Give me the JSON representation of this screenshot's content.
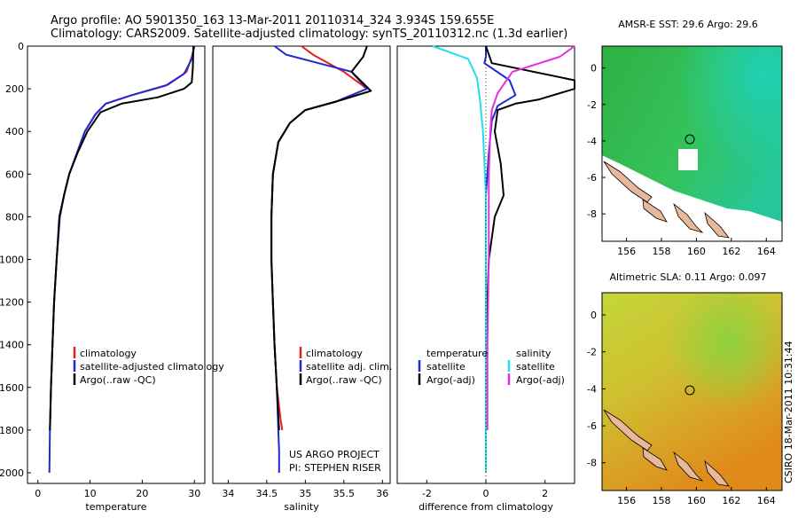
{
  "header": {
    "line1": "Argo profile: AO 5901350_163 13-Mar-2011 20110314_324 3.934S 159.655E",
    "line2": "Climatology: CARS2009. Satellite-adjusted climatology: synTS_20110312.nc (1.3d earlier)"
  },
  "colors": {
    "climatology": "#e8201c",
    "satellite": "#1d2bd6",
    "argo": "#000000",
    "satellite_salinity": "#22e0e8",
    "argo_salinity_adj": "#e030e0",
    "sst_green": "#33b84a",
    "sla_yellow": "#b4d23a",
    "land": "#e8b89a"
  },
  "depth_ticks": [
    "0",
    "200",
    "400",
    "600",
    "800",
    "1000",
    "1200",
    "1400",
    "1600",
    "1800",
    "2000"
  ],
  "panels": {
    "temperature": {
      "xlabel": "temperature",
      "xticks": [
        "0",
        "10",
        "20",
        "30"
      ],
      "legend": [
        "climatology",
        "satellite-adjusted climatology",
        "Argo(..raw -QC)"
      ]
    },
    "salinity": {
      "xlabel": "salinity",
      "xticks": [
        "34",
        "34.5",
        "35",
        "35.5",
        "36"
      ],
      "legend": [
        "climatology",
        "satellite adj. clim.",
        "Argo(..raw -QC)"
      ],
      "project_line1": "US ARGO PROJECT",
      "project_line2": "PI: STEPHEN RISER"
    },
    "difference": {
      "xlabel": "difference from climatology",
      "xticks": [
        "-2",
        "0",
        "2"
      ],
      "legend_temp_title": "temperature",
      "legend_sal_title": "salinity",
      "legend_temp": [
        "satellite",
        "Argo(-adj)"
      ],
      "legend_sal": [
        "satellite",
        "Argo(-adj)"
      ]
    }
  },
  "maps": {
    "sst": {
      "title": "AMSR-E SST: 29.6 Argo: 29.6"
    },
    "sla": {
      "title": "Altimetric SLA: 0.11 Argo: 0.097"
    },
    "xticks": [
      "156",
      "158",
      "160",
      "162",
      "164"
    ],
    "yticks": [
      "0",
      "-2",
      "-4",
      "-6",
      "-8"
    ],
    "argo_position": {
      "lon": 159.655,
      "lat": -3.934
    }
  },
  "side_label": "CSIRO 18-Mar-2011 10:31:44",
  "chart_data": [
    {
      "type": "line",
      "title": "",
      "xlabel": "temperature",
      "ylabel": "",
      "xlim": [
        -2,
        32
      ],
      "ylim": [
        2050,
        0
      ],
      "series": [
        {
          "name": "climatology",
          "x": [
            30,
            29.5,
            28.5,
            25,
            18,
            13,
            11,
            9,
            7.5,
            6,
            5,
            4.2,
            3.6,
            3.1,
            2.8,
            2.5,
            2.3
          ],
          "y": [
            0,
            50,
            120,
            180,
            230,
            270,
            320,
            400,
            500,
            600,
            700,
            800,
            1000,
            1200,
            1400,
            1600,
            1800
          ]
        },
        {
          "name": "satellite-adjusted climatology",
          "x": [
            30,
            29.5,
            28,
            24.5,
            18,
            13,
            11,
            9,
            7.5,
            6,
            5,
            4.2,
            3.6,
            3.1,
            2.8,
            2.5,
            2.3,
            2.2
          ],
          "y": [
            0,
            60,
            130,
            185,
            230,
            270,
            320,
            400,
            500,
            600,
            700,
            800,
            1000,
            1200,
            1400,
            1600,
            1800,
            2000
          ]
        },
        {
          "name": "Argo(..raw -QC)",
          "x": [
            29.8,
            29.7,
            29.5,
            28,
            23,
            16,
            12,
            9.5,
            7.6,
            6,
            5,
            4.1,
            3.6,
            3.1,
            2.8,
            2.5,
            2.3
          ],
          "y": [
            0,
            100,
            170,
            200,
            240,
            270,
            310,
            400,
            500,
            600,
            700,
            800,
            1000,
            1200,
            1400,
            1600,
            1800
          ]
        }
      ]
    },
    {
      "type": "line",
      "title": "",
      "xlabel": "salinity",
      "ylabel": "",
      "xlim": [
        33.8,
        36.1
      ],
      "ylim": [
        2050,
        0
      ],
      "series": [
        {
          "name": "climatology",
          "x": [
            34.95,
            35.1,
            35.5,
            35.8,
            35.4,
            35.0,
            34.8,
            34.65,
            34.58,
            34.56,
            34.56,
            34.58,
            34.6,
            34.63,
            34.68,
            34.7
          ],
          "y": [
            0,
            40,
            120,
            200,
            260,
            300,
            360,
            450,
            600,
            800,
            1000,
            1200,
            1400,
            1600,
            1750,
            1800
          ]
        },
        {
          "name": "satellite adj. clim.",
          "x": [
            34.6,
            34.75,
            35.6,
            35.8,
            35.4,
            35.0,
            34.8,
            34.65,
            34.58,
            34.56,
            34.56,
            34.58,
            34.6,
            34.63,
            34.65,
            34.66,
            34.66
          ],
          "y": [
            0,
            40,
            120,
            200,
            260,
            300,
            360,
            450,
            600,
            800,
            1000,
            1200,
            1400,
            1600,
            1800,
            1900,
            2000
          ]
        },
        {
          "name": "Argo(..raw -QC)",
          "x": [
            35.8,
            35.75,
            35.6,
            35.85,
            35.4,
            35.0,
            34.8,
            34.65,
            34.58,
            34.56,
            34.56,
            34.58,
            34.6,
            34.63,
            34.66
          ],
          "y": [
            0,
            50,
            120,
            210,
            260,
            300,
            360,
            450,
            600,
            800,
            1000,
            1200,
            1400,
            1600,
            1800
          ]
        }
      ]
    },
    {
      "type": "line",
      "title": "",
      "xlabel": "difference from climatology",
      "ylabel": "",
      "xlim": [
        -3,
        3
      ],
      "ylim": [
        2050,
        0
      ],
      "series": [
        {
          "name": "temperature satellite",
          "x": [
            0,
            0,
            -0.05,
            0.8,
            1.0,
            0.4,
            0.2,
            0.1,
            0,
            0,
            0,
            0,
            0
          ],
          "y": [
            0,
            50,
            80,
            160,
            230,
            280,
            350,
            500,
            700,
            1000,
            1400,
            1800,
            2000
          ]
        },
        {
          "name": "temperature Argo(-adj)",
          "x": [
            0,
            0.2,
            3,
            3,
            1.8,
            1.0,
            0.4,
            0.3,
            0.5,
            0.6,
            0.3,
            0.1,
            0,
            0
          ],
          "y": [
            0,
            80,
            160,
            200,
            250,
            270,
            300,
            400,
            550,
            700,
            800,
            1000,
            1400,
            1800
          ]
        },
        {
          "name": "salinity satellite",
          "x": [
            -1.8,
            -0.6,
            -0.3,
            -0.2,
            -0.1,
            0,
            0,
            0,
            0,
            0
          ],
          "y": [
            0,
            60,
            150,
            250,
            400,
            700,
            1000,
            1400,
            1800,
            2000
          ]
        },
        {
          "name": "salinity Argo(-adj)",
          "x": [
            3,
            2.5,
            0.9,
            0.4,
            0.2,
            0.15,
            0.1,
            0.1,
            0.05,
            0.05
          ],
          "y": [
            0,
            50,
            120,
            220,
            300,
            400,
            600,
            1000,
            1400,
            1800
          ]
        }
      ]
    }
  ]
}
